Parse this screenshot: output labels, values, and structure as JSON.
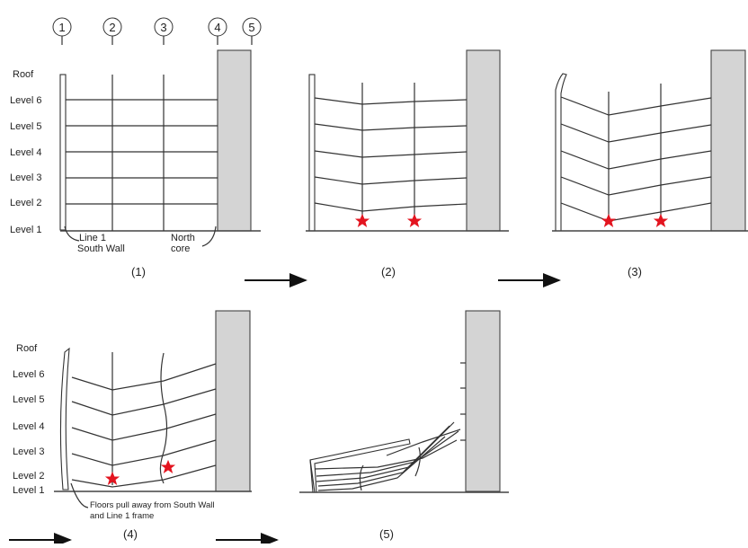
{
  "grid_lines": [
    "1",
    "2",
    "3",
    "4",
    "5"
  ],
  "level_labels": [
    "Roof",
    "Level 6",
    "Level 5",
    "Level 4",
    "Level 3",
    "Level 2",
    "Level 1"
  ],
  "annotations": {
    "line1_a": "Line 1",
    "line1_b": "South Wall",
    "north_a": "North",
    "north_b": "core",
    "floors_a": "Floors pull away from South Wall",
    "floors_b": "and Line 1 frame"
  },
  "captions": [
    "(1)",
    "(2)",
    "(3)",
    "(4)",
    "(5)"
  ],
  "colors": {
    "star": "#e3141f",
    "core_fill": "#d4d4d4",
    "line": "#333333"
  }
}
